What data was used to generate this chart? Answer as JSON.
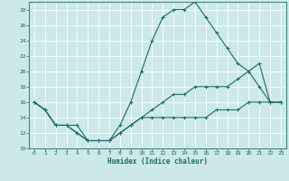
{
  "xlabel": "Humidex (Indice chaleur)",
  "ylabel": "",
  "background_color": "#cce8e8",
  "grid_color": "#ffffff",
  "line_color": "#1a6b6b",
  "xlim": [
    -0.5,
    23.5
  ],
  "ylim": [
    10,
    29
  ],
  "xticks": [
    0,
    1,
    2,
    3,
    4,
    5,
    6,
    7,
    8,
    9,
    10,
    11,
    12,
    13,
    14,
    15,
    16,
    17,
    18,
    19,
    20,
    21,
    22,
    23
  ],
  "yticks": [
    10,
    12,
    14,
    16,
    18,
    20,
    22,
    24,
    26,
    28
  ],
  "series": [
    {
      "x": [
        0,
        1,
        2,
        3,
        4,
        5,
        6,
        7,
        8,
        9,
        10,
        11,
        12,
        13,
        14,
        15,
        16,
        17,
        18,
        19,
        20,
        21,
        22,
        23
      ],
      "y": [
        16,
        15,
        13,
        13,
        13,
        11,
        11,
        11,
        13,
        16,
        20,
        24,
        27,
        28,
        28,
        29,
        27,
        25,
        23,
        21,
        20,
        18,
        16,
        16
      ]
    },
    {
      "x": [
        0,
        1,
        2,
        3,
        4,
        5,
        6,
        7,
        8,
        9,
        10,
        11,
        12,
        13,
        14,
        15,
        16,
        17,
        18,
        19,
        20,
        21,
        22,
        23
      ],
      "y": [
        16,
        15,
        13,
        13,
        12,
        11,
        11,
        11,
        12,
        13,
        14,
        14,
        14,
        14,
        14,
        14,
        14,
        15,
        15,
        15,
        16,
        16,
        16,
        16
      ]
    },
    {
      "x": [
        0,
        1,
        2,
        3,
        4,
        5,
        6,
        7,
        8,
        9,
        10,
        11,
        12,
        13,
        14,
        15,
        16,
        17,
        18,
        19,
        20,
        21,
        22,
        23
      ],
      "y": [
        16,
        15,
        13,
        13,
        12,
        11,
        11,
        11,
        12,
        13,
        14,
        15,
        16,
        17,
        17,
        18,
        18,
        18,
        18,
        19,
        20,
        21,
        16,
        16
      ]
    }
  ]
}
